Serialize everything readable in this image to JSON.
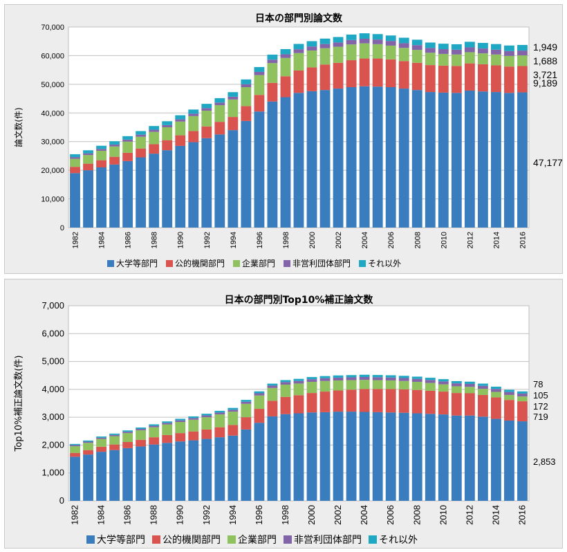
{
  "colors": {
    "university": "#3a7dbf",
    "public": "#d9534f",
    "company": "#8fc15e",
    "nonprofit": "#8464a8",
    "other": "#1fa8c4"
  },
  "chart_data": [
    {
      "type": "bar",
      "stacked": true,
      "title": "日本の部門別論文数",
      "xlabel": "",
      "ylabel": "論文数(件)",
      "ylim": [
        0,
        70000
      ],
      "yticks": [
        0,
        10000,
        20000,
        30000,
        40000,
        50000,
        60000,
        70000
      ],
      "ytick_labels": [
        "0",
        "10,000",
        "20,000",
        "30,000",
        "40,000",
        "50,000",
        "60,000",
        "70,000"
      ],
      "xtick_labels": [
        "1982",
        "1984",
        "1986",
        "1988",
        "1990",
        "1992",
        "1994",
        "1996",
        "1998",
        "2000",
        "2002",
        "2004",
        "2006",
        "2008",
        "2010",
        "2012",
        "2014",
        "2016"
      ],
      "categories": [
        1982,
        1983,
        1984,
        1985,
        1986,
        1987,
        1988,
        1989,
        1990,
        1991,
        1992,
        1993,
        1994,
        1995,
        1996,
        1997,
        1998,
        1999,
        2000,
        2001,
        2002,
        2003,
        2004,
        2005,
        2006,
        2007,
        2008,
        2009,
        2010,
        2011,
        2012,
        2013,
        2014,
        2015,
        2016
      ],
      "series": [
        {
          "name": "大学等部門",
          "color_key": "university",
          "values": [
            19000,
            20000,
            21000,
            22000,
            23200,
            24500,
            25800,
            27000,
            28500,
            29800,
            31200,
            32500,
            34000,
            37200,
            40500,
            44000,
            45500,
            47000,
            47600,
            48000,
            48500,
            49000,
            49300,
            49200,
            49000,
            48500,
            48000,
            47300,
            47100,
            47000,
            47800,
            47500,
            47300,
            47000,
            47177
          ]
        },
        {
          "name": "公的機関部門",
          "color_key": "public",
          "values": [
            2200,
            2300,
            2500,
            2700,
            2900,
            3100,
            3300,
            3500,
            3700,
            3900,
            4100,
            4400,
            4600,
            5200,
            5800,
            6500,
            7300,
            7800,
            8300,
            8900,
            9000,
            9400,
            9700,
            9800,
            9700,
            9600,
            9500,
            9400,
            9400,
            9400,
            9500,
            9500,
            9300,
            9200,
            9189
          ]
        },
        {
          "name": "企業部門",
          "color_key": "company",
          "values": [
            2800,
            3000,
            3300,
            3600,
            3900,
            4100,
            4300,
            4500,
            4800,
            5200,
            5500,
            5800,
            6100,
            6600,
            6900,
            6900,
            6400,
            6100,
            5900,
            5700,
            5600,
            5500,
            5300,
            5000,
            4800,
            4600,
            4500,
            4300,
            4100,
            4000,
            3900,
            3800,
            3800,
            3700,
            3721
          ]
        },
        {
          "name": "非営利団体部門",
          "color_key": "nonprofit",
          "values": [
            600,
            620,
            650,
            680,
            700,
            720,
            740,
            760,
            800,
            840,
            880,
            920,
            960,
            1040,
            1120,
            1200,
            1280,
            1340,
            1400,
            1450,
            1500,
            1550,
            1600,
            1620,
            1640,
            1650,
            1660,
            1670,
            1670,
            1680,
            1690,
            1690,
            1690,
            1690,
            1688
          ]
        },
        {
          "name": "それ以外",
          "color_key": "other",
          "values": [
            1000,
            1050,
            1100,
            1150,
            1200,
            1250,
            1300,
            1350,
            1400,
            1450,
            1500,
            1550,
            1600,
            1650,
            1700,
            1750,
            1800,
            1850,
            1850,
            1900,
            1900,
            1900,
            1900,
            1900,
            1900,
            1900,
            1900,
            1900,
            1900,
            1900,
            1950,
            1950,
            1950,
            1950,
            1949
          ]
        }
      ],
      "annotations": [
        "1,949",
        "1,688",
        "3,721",
        "9,189",
        "47,177"
      ],
      "legend": "bottom"
    },
    {
      "type": "bar",
      "stacked": true,
      "title": "日本の部門別Top10%補正論文数",
      "xlabel": "",
      "ylabel": "Top10%補正論文数(件)",
      "ylim": [
        0,
        7000
      ],
      "yticks": [
        0,
        1000,
        2000,
        3000,
        4000,
        5000,
        6000,
        7000
      ],
      "ytick_labels": [
        "0",
        "1,000",
        "2,000",
        "3,000",
        "4,000",
        "5,000",
        "6,000",
        "7,000"
      ],
      "xtick_labels": [
        "1982",
        "1984",
        "1986",
        "1988",
        "1990",
        "1992",
        "1994",
        "1996",
        "1998",
        "2000",
        "2002",
        "2004",
        "2006",
        "2008",
        "2010",
        "2012",
        "2014",
        "2016"
      ],
      "categories": [
        1982,
        1983,
        1984,
        1985,
        1986,
        1987,
        1988,
        1989,
        1990,
        1991,
        1992,
        1993,
        1994,
        1995,
        1996,
        1997,
        1998,
        1999,
        2000,
        2001,
        2002,
        2003,
        2004,
        2005,
        2006,
        2007,
        2008,
        2009,
        2010,
        2011,
        2012,
        2013,
        2014,
        2015,
        2016
      ],
      "series": [
        {
          "name": "大学等部門",
          "color_key": "university",
          "values": [
            1580,
            1660,
            1760,
            1820,
            1890,
            1950,
            2020,
            2080,
            2130,
            2170,
            2220,
            2280,
            2340,
            2560,
            2800,
            3030,
            3110,
            3140,
            3170,
            3180,
            3200,
            3200,
            3190,
            3180,
            3170,
            3160,
            3140,
            3120,
            3100,
            3060,
            3060,
            3020,
            2940,
            2880,
            2853
          ]
        },
        {
          "name": "公的機関部門",
          "color_key": "public",
          "values": [
            140,
            160,
            180,
            200,
            220,
            240,
            260,
            280,
            300,
            320,
            340,
            360,
            380,
            440,
            500,
            560,
            620,
            650,
            700,
            740,
            760,
            790,
            820,
            830,
            840,
            840,
            840,
            830,
            820,
            810,
            800,
            780,
            770,
            740,
            719
          ]
        },
        {
          "name": "企業部門",
          "color_key": "company",
          "values": [
            240,
            260,
            280,
            300,
            320,
            340,
            360,
            380,
            400,
            420,
            440,
            460,
            480,
            480,
            480,
            460,
            440,
            420,
            400,
            380,
            360,
            340,
            330,
            320,
            310,
            300,
            290,
            280,
            260,
            240,
            230,
            220,
            200,
            180,
            172
          ]
        },
        {
          "name": "非営利団体部門",
          "color_key": "nonprofit",
          "values": [
            40,
            42,
            44,
            46,
            48,
            50,
            52,
            55,
            58,
            61,
            64,
            67,
            70,
            75,
            80,
            85,
            90,
            92,
            95,
            98,
            100,
            102,
            104,
            105,
            106,
            106,
            106,
            106,
            106,
            106,
            106,
            106,
            106,
            105,
            105
          ]
        },
        {
          "name": "それ以外",
          "color_key": "other",
          "values": [
            40,
            42,
            44,
            46,
            48,
            50,
            52,
            54,
            56,
            58,
            60,
            62,
            64,
            66,
            68,
            70,
            72,
            74,
            76,
            78,
            80,
            80,
            80,
            80,
            80,
            80,
            80,
            80,
            80,
            80,
            80,
            80,
            80,
            78,
            78
          ]
        }
      ],
      "annotations": [
        "78",
        "105",
        "172",
        "719",
        "2,853"
      ],
      "legend": "bottom"
    }
  ]
}
